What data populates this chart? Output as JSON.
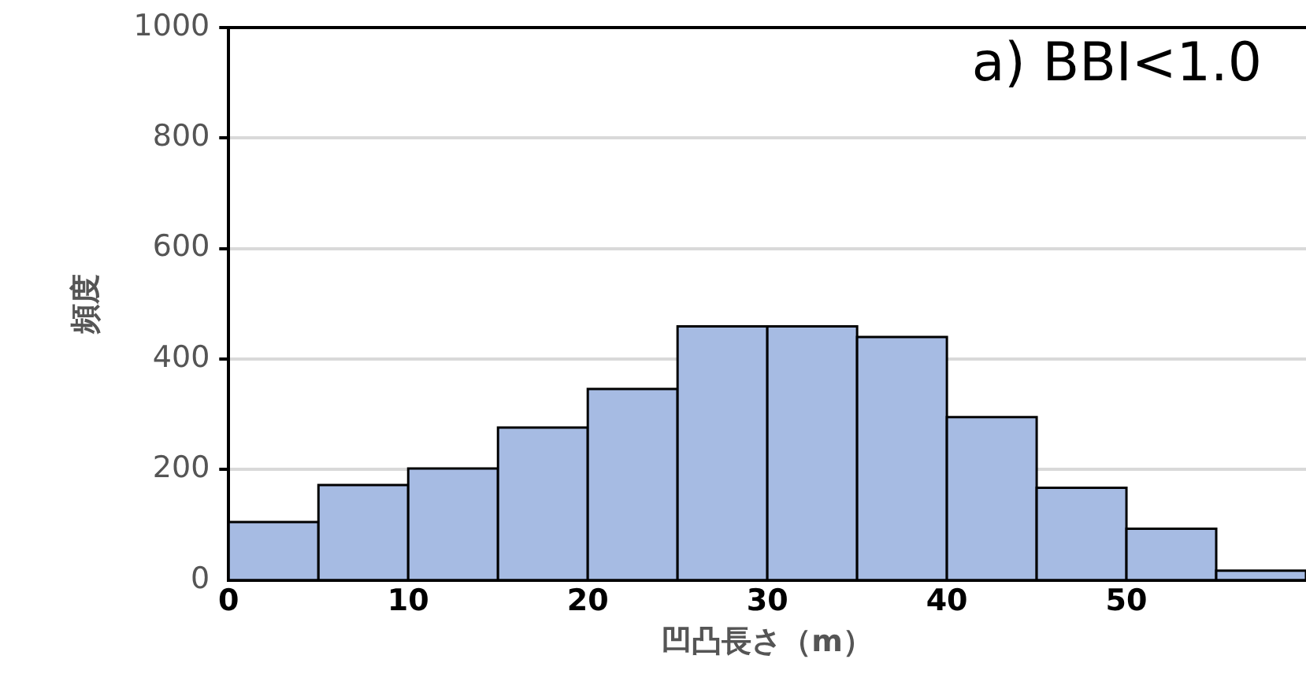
{
  "chart_data": {
    "type": "histogram",
    "xlabel": "凹凸長さ（m）",
    "ylabel": "頻度",
    "annotations": [
      "a) BBI<1.0"
    ],
    "bins": [
      0,
      5,
      10,
      15,
      20,
      25,
      30,
      35,
      40,
      45,
      50,
      55,
      60
    ],
    "values": [
      105,
      172,
      202,
      276,
      346,
      459,
      459,
      440,
      295,
      167,
      93,
      17
    ],
    "color": "#a6bbe3",
    "xlim": [
      0,
      60
    ],
    "xticks": [
      0,
      10,
      20,
      30,
      40,
      50
    ],
    "ylim": [
      0,
      1000
    ],
    "yticks": [
      0,
      200,
      400,
      600,
      800,
      1000
    ],
    "grid": "y",
    "legend": false
  }
}
